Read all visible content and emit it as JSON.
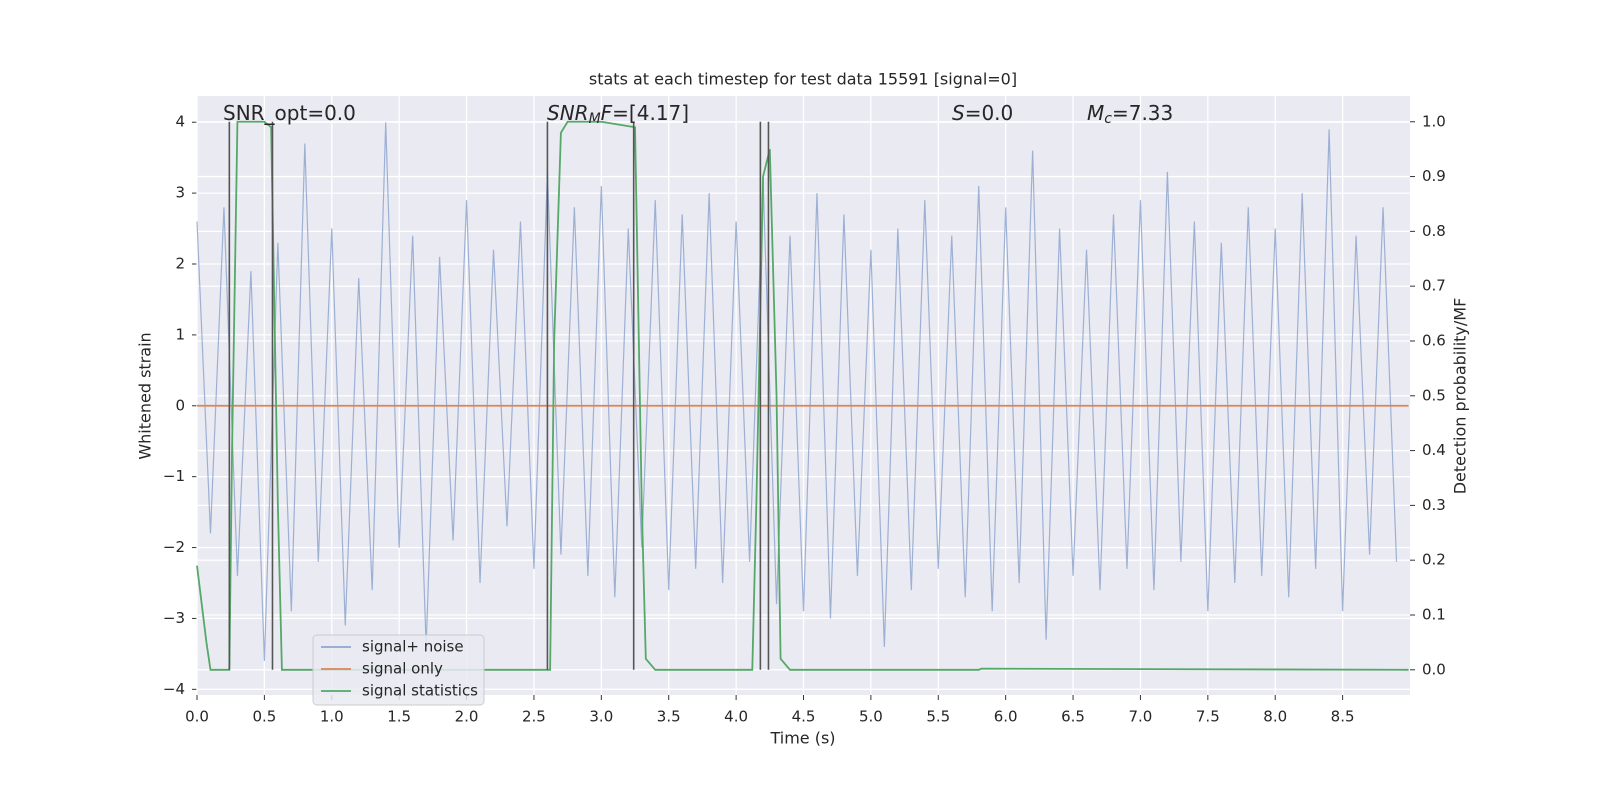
{
  "chart_data": {
    "type": "line",
    "title": "stats at each timestep for test data 15591 [signal=0]",
    "xlabel": "Time (s)",
    "ylabel": "Whitened strain",
    "y2label": "Detection probability/MF",
    "xlim": [
      0,
      9.0
    ],
    "ylim": [
      -4.08,
      4.37
    ],
    "y2lim": [
      -0.046,
      1.047
    ],
    "xticks": [
      {
        "value": 0,
        "label": "0.0"
      },
      {
        "value": 0.5,
        "label": "0.5"
      },
      {
        "value": 1,
        "label": "1.0"
      },
      {
        "value": 1.5,
        "label": "1.5"
      },
      {
        "value": 2,
        "label": "2.0"
      },
      {
        "value": 2.5,
        "label": "2.5"
      },
      {
        "value": 3,
        "label": "3.0"
      },
      {
        "value": 3.5,
        "label": "3.5"
      },
      {
        "value": 4,
        "label": "4.0"
      },
      {
        "value": 4.5,
        "label": "4.5"
      },
      {
        "value": 5,
        "label": "5.0"
      },
      {
        "value": 5.5,
        "label": "5.5"
      },
      {
        "value": 6,
        "label": "6.0"
      },
      {
        "value": 6.5,
        "label": "6.5"
      },
      {
        "value": 7,
        "label": "7.0"
      },
      {
        "value": 7.5,
        "label": "7.5"
      },
      {
        "value": 8,
        "label": "8.0"
      },
      {
        "value": 8.5,
        "label": "8.5"
      }
    ],
    "yticks": [
      {
        "value": -4,
        "label": "−4"
      },
      {
        "value": -3,
        "label": "−3"
      },
      {
        "value": -2,
        "label": "−2"
      },
      {
        "value": -1,
        "label": "−1"
      },
      0,
      1,
      2,
      3,
      4
    ],
    "y2ticks": [
      {
        "value": 0,
        "label": "0.0"
      },
      {
        "value": 0.1,
        "label": "0.1"
      },
      {
        "value": 0.2,
        "label": "0.2"
      },
      {
        "value": 0.3,
        "label": "0.3"
      },
      {
        "value": 0.4,
        "label": "0.4"
      },
      {
        "value": 0.5,
        "label": "0.5"
      },
      {
        "value": 0.6,
        "label": "0.6"
      },
      {
        "value": 0.7,
        "label": "0.7"
      },
      {
        "value": 0.8,
        "label": "0.8"
      },
      {
        "value": 0.9,
        "label": "0.9"
      },
      {
        "value": 1,
        "label": "1.0"
      }
    ],
    "grid": true,
    "legend": "lower left",
    "series": [
      {
        "name": "signal+ noise",
        "color": "#8fa6cf",
        "x": [
          0.0,
          0.1,
          0.2,
          0.3,
          0.4,
          0.5,
          0.6,
          0.7,
          0.8,
          0.9,
          1.0,
          1.1,
          1.2,
          1.3,
          1.4,
          1.5,
          1.6,
          1.7,
          1.8,
          1.9,
          2.0,
          2.1,
          2.2,
          2.3,
          2.4,
          2.5,
          2.6,
          2.7,
          2.8,
          2.9,
          3.0,
          3.1,
          3.2,
          3.3,
          3.4,
          3.5,
          3.6,
          3.7,
          3.8,
          3.9,
          4.0,
          4.1,
          4.2,
          4.3,
          4.4,
          4.5,
          4.6,
          4.7,
          4.8,
          4.9,
          5.0,
          5.1,
          5.2,
          5.3,
          5.4,
          5.5,
          5.6,
          5.7,
          5.8,
          5.9,
          6.0,
          6.1,
          6.2,
          6.3,
          6.4,
          6.5,
          6.6,
          6.7,
          6.8,
          6.9,
          7.0,
          7.1,
          7.2,
          7.3,
          7.4,
          7.5,
          7.6,
          7.7,
          7.8,
          7.9,
          8.0,
          8.1,
          8.2,
          8.3,
          8.4,
          8.5,
          8.6,
          8.7,
          8.8,
          8.9
        ],
        "values": [
          2.6,
          -1.8,
          2.8,
          -2.4,
          1.9,
          -3.6,
          2.3,
          -2.9,
          3.7,
          -2.2,
          2.5,
          -3.1,
          1.8,
          -2.6,
          4.0,
          -2.0,
          2.4,
          -3.4,
          2.1,
          -1.9,
          2.9,
          -2.5,
          2.2,
          -1.7,
          2.6,
          -2.3,
          3.3,
          -2.1,
          2.8,
          -2.4,
          3.1,
          -2.7,
          2.5,
          -2.0,
          2.9,
          -2.6,
          2.7,
          -2.3,
          3.0,
          -2.5,
          2.6,
          -2.2,
          3.2,
          -2.8,
          2.4,
          -2.9,
          3.0,
          -3.0,
          2.7,
          -2.4,
          2.2,
          -3.4,
          2.5,
          -2.6,
          2.9,
          -2.3,
          2.4,
          -2.7,
          3.1,
          -2.9,
          2.8,
          -2.5,
          3.6,
          -3.3,
          2.5,
          -2.4,
          2.2,
          -2.6,
          2.7,
          -2.3,
          2.9,
          -2.6,
          3.3,
          -2.2,
          2.6,
          -2.9,
          2.3,
          -2.5,
          2.8,
          -2.4,
          2.5,
          -2.7,
          3.0,
          -2.3,
          3.9,
          -2.9,
          2.4,
          -2.1,
          2.8,
          -2.2
        ]
      },
      {
        "name": "signal only",
        "color": "#dd8452",
        "x": [
          0,
          8.99
        ],
        "values": [
          0,
          0
        ]
      },
      {
        "name": "signal statistics",
        "color": "#55a868",
        "axis": "y2",
        "x": [
          0,
          0.07,
          0.1,
          0.24,
          0.26,
          0.3,
          0.5,
          0.55,
          0.6,
          0.63,
          2.62,
          2.65,
          2.7,
          2.75,
          3.0,
          3.25,
          3.3,
          3.33,
          3.4,
          4.12,
          4.15,
          4.2,
          4.25,
          4.3,
          4.33,
          4.4,
          5.8,
          5.82,
          8.99
        ],
        "values": [
          0.19,
          0.05,
          0.0,
          0.0,
          0.4,
          1.0,
          1.0,
          0.99,
          0.3,
          0.0,
          0.0,
          0.6,
          0.98,
          1.0,
          1.0,
          0.99,
          0.3,
          0.02,
          0.0,
          0.0,
          0.3,
          0.9,
          0.95,
          0.5,
          0.02,
          0.0,
          0.0,
          0.002,
          0.0
        ]
      }
    ],
    "vlines": [
      0.24,
      0.56,
      2.6,
      3.24,
      4.18,
      4.24
    ],
    "vline_color": "#555555",
    "annotations": [
      {
        "parts": [
          {
            "text": "SNR_opt=0.0"
          }
        ]
      },
      {
        "parts": [
          {
            "text": "SNR",
            "italic": true
          },
          {
            "text": "M",
            "italic": true,
            "sub": true
          },
          {
            "text": "F",
            "italic": true
          },
          {
            "text": "=[4.17]"
          }
        ]
      },
      {
        "parts": [
          {
            "text": "S",
            "italic": true
          },
          {
            "text": "=0.0"
          }
        ]
      },
      {
        "parts": [
          {
            "text": "M",
            "italic": true
          },
          {
            "text": "c",
            "italic": true,
            "sub": true
          },
          {
            "text": "=7.33"
          }
        ]
      }
    ]
  }
}
